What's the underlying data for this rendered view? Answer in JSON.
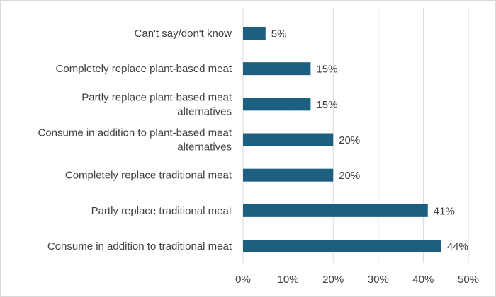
{
  "chart_data": {
    "type": "bar",
    "orientation": "horizontal",
    "title": "",
    "xlabel": "",
    "ylabel": "",
    "categories": [
      [
        "Can't say/don't know"
      ],
      [
        "Completely replace plant-based meat"
      ],
      [
        "Partly replace plant-based meat",
        "alternatives"
      ],
      [
        "Consume in addition to plant-based meat",
        "alternatives"
      ],
      [
        "Completely replace traditional meat"
      ],
      [
        "Partly replace traditional meat"
      ],
      [
        "Consume in addition to traditional meat"
      ]
    ],
    "values": [
      5,
      15,
      15,
      20,
      20,
      41,
      44
    ],
    "data_labels": [
      "5%",
      "15%",
      "15%",
      "20%",
      "20%",
      "41%",
      "44%"
    ],
    "xlim": [
      0,
      50
    ],
    "ticks": [
      0,
      10,
      20,
      30,
      40,
      50
    ],
    "tick_labels": [
      "0%",
      "10%",
      "20%",
      "30%",
      "40%",
      "50%"
    ],
    "grid": true,
    "legend": "none",
    "bar_color": "#1d5f80",
    "grid_color": "#d9d9d9",
    "text_color": "#404040"
  }
}
